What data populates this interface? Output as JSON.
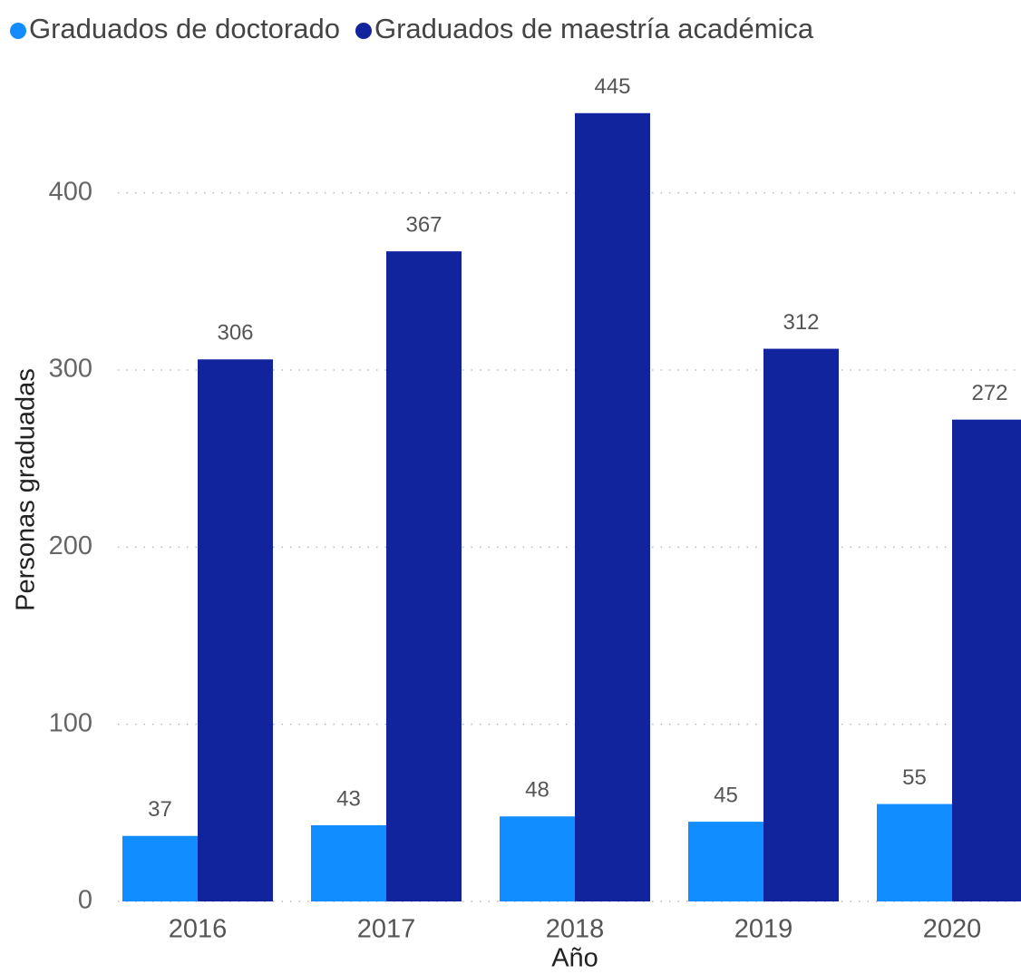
{
  "chart_data": {
    "type": "bar",
    "x_label": "Año",
    "y_label": "Personas graduadas",
    "categories": [
      "2016",
      "2017",
      "2018",
      "2019",
      "2020"
    ],
    "series": [
      {
        "name": "Graduados de doctorado",
        "color": "#118dff",
        "values": [
          37,
          43,
          48,
          45,
          55
        ]
      },
      {
        "name": "Graduados de maestría académica",
        "color": "#12239e",
        "values": [
          306,
          367,
          445,
          312,
          272
        ]
      }
    ],
    "ylim": [
      0,
      450
    ],
    "yticks": [
      0,
      100,
      200,
      300,
      400
    ],
    "grid": true,
    "legend": "top-left"
  }
}
